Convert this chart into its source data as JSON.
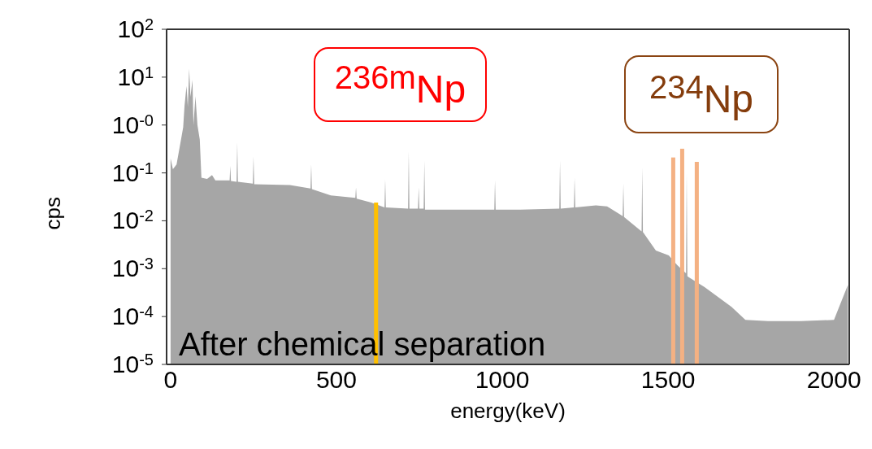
{
  "chart_data": {
    "type": "area",
    "xlabel": "energy(keV)",
    "ylabel": "cps",
    "log": "y",
    "xlim": [
      -12,
      2046
    ],
    "xticks": [
      0,
      500,
      1000,
      1500,
      2000
    ],
    "ylim": [
      1e-05,
      100
    ],
    "yticks": [
      {
        "value": 100,
        "label": "10$^{2}$"
      },
      {
        "value": 10,
        "label": "10$^{1}$"
      },
      {
        "value": 1,
        "label": "10$^{-0}$"
      },
      {
        "value": 0.1,
        "label": "10$^{-1}$"
      },
      {
        "value": 0.01,
        "label": "10$^{-2}$"
      },
      {
        "value": 0.001,
        "label": "10$^{-3}$"
      },
      {
        "value": 0.0001,
        "label": "10$^{-4}$"
      },
      {
        "value": 1e-05,
        "label": "10$^{-5}$"
      }
    ],
    "series": [
      {
        "color": "#a6a6a6",
        "x": [
          0,
          7,
          18,
          29,
          38,
          42,
          48,
          52,
          56,
          60,
          66,
          69,
          75,
          81,
          88,
          93,
          110,
          125,
          135,
          178,
          180,
          182,
          199,
          201,
          203,
          248,
          250,
          252,
          360,
          422,
          424,
          426,
          483,
          557,
          559,
          561,
          605,
          645,
          647,
          649,
          716,
          718,
          720,
          746,
          748,
          750,
          763,
          765,
          767,
          976,
          978,
          980,
          1054,
          1172,
          1174,
          1176,
          1216,
          1218,
          1220,
          1282,
          1316,
          1363,
          1365,
          1367,
          1414,
          1420,
          1422,
          1424,
          1463,
          1502,
          1527,
          1554,
          1556,
          1558,
          1561,
          1610,
          1691,
          1733,
          1800,
          1900,
          2000,
          2042
        ],
        "values": [
          0.2,
          0.12,
          0.15,
          0.4,
          0.9,
          2.5,
          6.5,
          2.4,
          15,
          3.9,
          8.8,
          1.0,
          4.0,
          1.0,
          0.5,
          0.079,
          0.075,
          0.09,
          0.07,
          0.07,
          0.14,
          0.068,
          0.065,
          0.43,
          0.065,
          0.06,
          0.22,
          0.058,
          0.056,
          0.047,
          0.15,
          0.046,
          0.034,
          0.03,
          0.05,
          0.029,
          0.024,
          0.019,
          0.073,
          0.019,
          0.018,
          0.28,
          0.018,
          0.018,
          0.05,
          0.018,
          0.018,
          0.18,
          0.017,
          0.017,
          0.07,
          0.017,
          0.017,
          0.018,
          0.18,
          0.018,
          0.019,
          0.079,
          0.019,
          0.021,
          0.02,
          0.0125,
          0.06,
          0.012,
          0.0065,
          0.006,
          0.13,
          0.0058,
          0.0024,
          0.0019,
          0.0012,
          0.0008,
          0.1,
          0.0007,
          0.00067,
          0.00041,
          0.00016,
          8.5e-05,
          8e-05,
          8e-05,
          8.5e-05,
          0.00046
        ]
      },
      {
        "type": "bar",
        "color": "#ffc000",
        "x": [
          620
        ],
        "values": [
          0.024
        ]
      },
      {
        "type": "bar",
        "color": "#f4b183",
        "x": [
          1515,
          1542,
          1586
        ],
        "values": [
          0.21,
          0.32,
          0.17
        ]
      }
    ],
    "annotations": [
      "$^{236m}$Np",
      "$^{234}$Np",
      "After chemical separation"
    ]
  }
}
